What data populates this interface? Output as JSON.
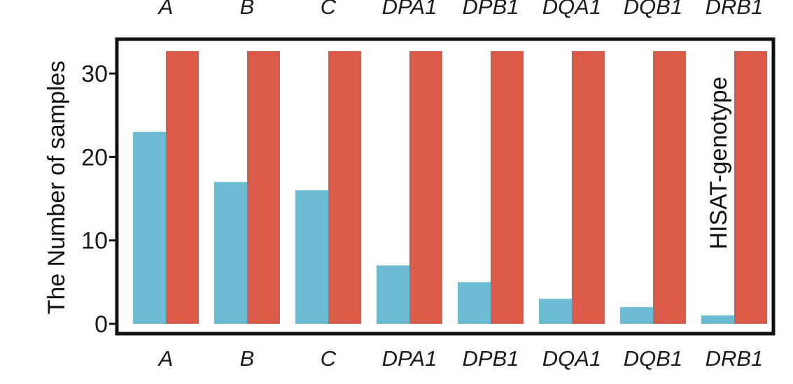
{
  "chart_data": {
    "type": "bar",
    "categories": [
      "A",
      "B",
      "C",
      "DPA1",
      "DPB1",
      "DQA1",
      "DQB1",
      "DRB1"
    ],
    "series": [
      {
        "name": "",
        "color": "#6bbcd3",
        "values": [
          23,
          17,
          16,
          7,
          5,
          3,
          2,
          1
        ]
      },
      {
        "name": "",
        "color": "#dc5a48",
        "values": [
          32,
          32,
          32,
          32,
          32,
          32,
          32,
          32
        ]
      }
    ],
    "title": "",
    "xlabel": "",
    "ylabel": "The Number of samples",
    "yticks": [
      "0",
      "10",
      "20",
      "30"
    ],
    "ylim": [
      0,
      34
    ],
    "annotation": "HISAT-genotype",
    "grid": false,
    "legend": "none"
  }
}
